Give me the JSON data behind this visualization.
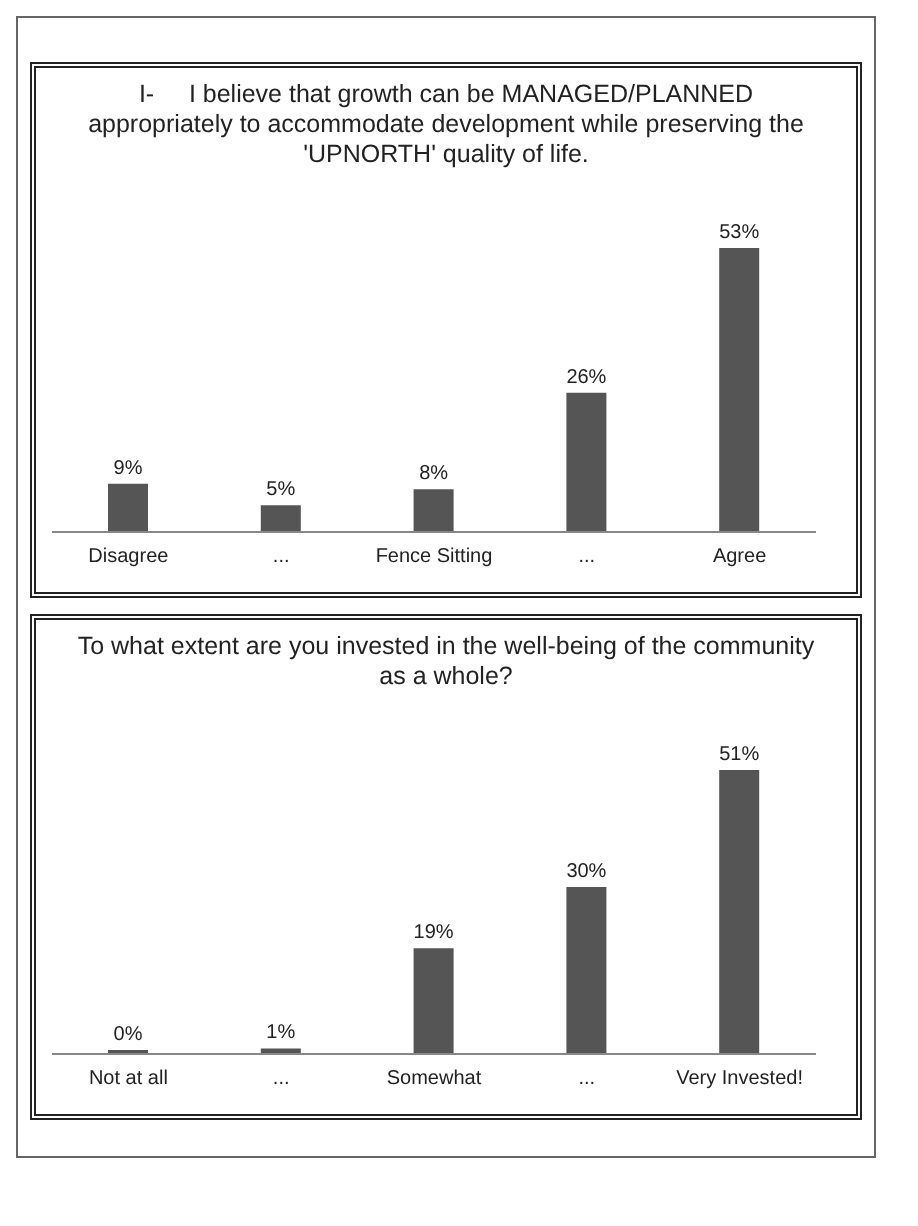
{
  "chart_data": [
    {
      "type": "bar",
      "title": "I-     I believe that growth can be MANAGED/PLANNED appropriately to accommodate development while preserving the 'UPNORTH' quality of life.",
      "categories": [
        "Disagree",
        "...",
        "Fence Sitting",
        "...",
        "Agree"
      ],
      "values": [
        9,
        5,
        8,
        26,
        53
      ],
      "value_labels": [
        "9%",
        "5%",
        "8%",
        "26%",
        "53%"
      ],
      "color": "#555555",
      "grid": false,
      "legend": false
    },
    {
      "type": "bar",
      "title": "To what extent are you invested in the well-being of the community as a whole?",
      "categories": [
        "Not at all",
        "...",
        "Somewhat",
        "...",
        "Very Invested!"
      ],
      "values": [
        0,
        1,
        19,
        30,
        51
      ],
      "value_labels": [
        "0%",
        "1%",
        "19%",
        "30%",
        "51%"
      ],
      "color": "#555555",
      "grid": false,
      "legend": false
    }
  ]
}
